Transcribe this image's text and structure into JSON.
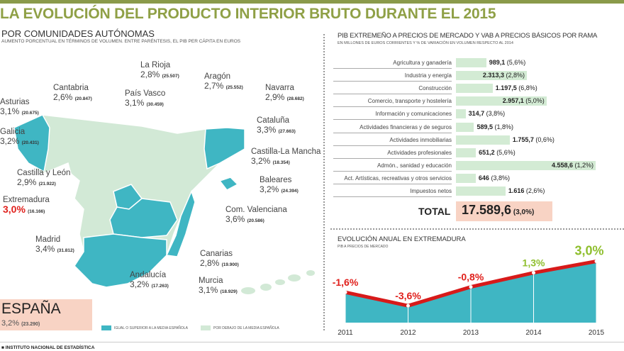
{
  "title": "LA EVOLUCIÓN DEL PRODUCTO INTERIOR BRUTO DURANTE EL 2015",
  "map": {
    "subtitle": "POR COMUNIDADES AUTÓNOMAS",
    "note": "AUMENTO PORCENTUAL EN TÉRMINOS DE VOLUMEN. ENTRE PARÉNTESIS, EL PIB PER CÁPITA EN EUROS",
    "regions": [
      {
        "name": "Asturias",
        "growth": "3,1%",
        "pib": "(20.675)",
        "above": false
      },
      {
        "name": "Cantabria",
        "growth": "2,6%",
        "pib": "(20.847)",
        "above": false
      },
      {
        "name": "La Rioja",
        "growth": "2,8%",
        "pib": "(25.507)",
        "above": false
      },
      {
        "name": "País Vasco",
        "growth": "3,1%",
        "pib": "(30.459)",
        "above": false
      },
      {
        "name": "Aragón",
        "growth": "2,7%",
        "pib": "(25.552)",
        "above": false
      },
      {
        "name": "Navarra",
        "growth": "2,9%",
        "pib": "(28.682)",
        "above": false
      },
      {
        "name": "Galicia",
        "growth": "3,2%",
        "pib": "(20.431)",
        "above": true
      },
      {
        "name": "Cataluña",
        "growth": "3,3%",
        "pib": "(27.663)",
        "above": true
      },
      {
        "name": "Castilla-La Mancha",
        "growth": "3,2%",
        "pib": "(18.354)",
        "above": true
      },
      {
        "name": "Castilla y León",
        "growth": "2,9%",
        "pib": "(21.922)",
        "above": false
      },
      {
        "name": "Baleares",
        "growth": "3,2%",
        "pib": "(24.394)",
        "above": true
      },
      {
        "name": "Extremadura",
        "growth": "3,0%",
        "pib": "(16.166)",
        "above": false
      },
      {
        "name": "Com. Valenciana",
        "growth": "3,6%",
        "pib": "(20.586)",
        "above": true
      },
      {
        "name": "Madrid",
        "growth": "3,4%",
        "pib": "(31.812)",
        "above": true
      },
      {
        "name": "Canarias",
        "growth": "2,8%",
        "pib": "(19.900)",
        "above": false
      },
      {
        "name": "Andalucía",
        "growth": "3,2%",
        "pib": "(17.263)",
        "above": true
      },
      {
        "name": "Murcia",
        "growth": "3,1%",
        "pib": "(18.929)",
        "above": false
      }
    ],
    "spain": {
      "name": "ESPAÑA",
      "growth": "3,2%",
      "pib": "(23.290)"
    },
    "legend": {
      "above": "IGUAL O SUPERIOR A LA MEDIA ESPAÑOLA",
      "below": "POR DEBAJO DE LA MEDIA ESPAÑOLA"
    },
    "colors": {
      "above": "#3fb6c3",
      "below": "#d2e9d6"
    }
  },
  "source": "INSTITUTO NACIONAL DE ESTADÍSTICA",
  "chart_data": [
    {
      "type": "bar",
      "title": "PIB EXTREMEÑO A PRECIOS DE MERCADO Y VAB A PRECIOS BÁSICOS POR RAMA",
      "subtitle": "EN MILLONES DE EUROS CORRIENTES Y % DE VARIACIÓN EN VOLUMEN RESPECTO AL 2014",
      "categories": [
        "Agricultura y ganadería",
        "Industria y energía",
        "Construcción",
        "Comercio, transporte y hostelería",
        "Información y comunicaciones",
        "Actividades financieras y de seguros",
        "Actividades inmobiliarias",
        "Actividades profesionales",
        "Admón., sanidad y educación",
        "Act. Artísticas, recreativas y otros servicios",
        "Impuestos netos"
      ],
      "values": [
        989.1,
        2313.3,
        1197.5,
        2957.1,
        314.7,
        589.5,
        1755.7,
        651.2,
        4558.6,
        646,
        1616
      ],
      "value_labels": [
        "989,1",
        "2.313,3",
        "1.197,5",
        "2.957,1",
        "314,7",
        "589,5",
        "1.755,7",
        "651,2",
        "4.558,6",
        "646",
        "1.616"
      ],
      "change_labels": [
        "(5,6%)",
        "(2,8%)",
        "(6,8%)",
        "(5,0%)",
        "(3,8%)",
        "(1,8%)",
        "(0,6%)",
        "(5,6%)",
        "(1,2%)",
        "(3,8%)",
        "(2,6%)"
      ],
      "total": {
        "label": "TOTAL",
        "value": "17.589,6",
        "change": "(3,0%)"
      },
      "bar_color": "#d3ebd4"
    },
    {
      "type": "area",
      "title": "EVOLUCIÓN ANUAL EN EXTREMADURA",
      "subtitle": "PIB A PRECIOS DE MERCADO",
      "x": [
        "2011",
        "2012",
        "2013",
        "2014",
        "2015"
      ],
      "y": [
        -1.6,
        -3.6,
        -0.8,
        1.3,
        3.0
      ],
      "data_labels": [
        "-1,6%",
        "-3,6%",
        "-0,8%",
        "1,3%",
        "3,0%"
      ],
      "label_colors": [
        "#e0201c",
        "#e0201c",
        "#e0201c",
        "#8fbf2e",
        "#8fbf2e"
      ],
      "line_color": "#d71a1a",
      "fill_color": "#3fb6c3"
    }
  ]
}
